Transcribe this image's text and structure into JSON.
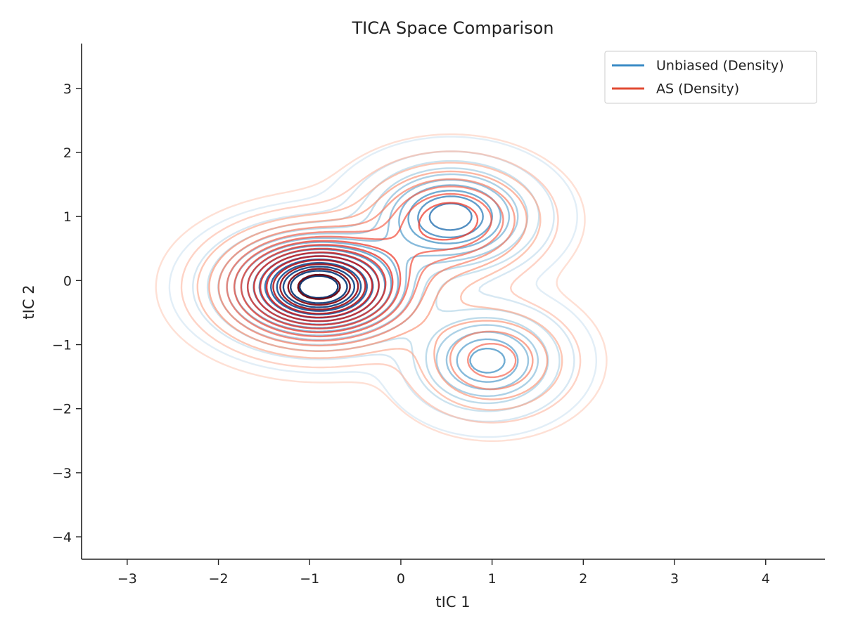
{
  "chart_data": {
    "type": "contour",
    "title": "TICA Space Comparison",
    "xlabel": "tIC 1",
    "ylabel": "tIC 2",
    "xlim": [
      -3.5,
      4.65
    ],
    "ylim": [
      -4.35,
      3.7
    ],
    "xticks": [
      -3,
      -2,
      -1,
      0,
      1,
      2,
      3,
      4
    ],
    "yticks": [
      -4,
      -3,
      -2,
      -1,
      0,
      1,
      2,
      3
    ],
    "xtick_labels": [
      "−3",
      "−2",
      "−1",
      "0",
      "1",
      "2",
      "3",
      "4"
    ],
    "ytick_labels": [
      "−4",
      "−3",
      "−2",
      "−1",
      "0",
      "1",
      "2",
      "3"
    ],
    "grid": false,
    "legend_position": "top-right",
    "series": [
      {
        "name": "Unbiased (Density)",
        "color": "#3a8bc6",
        "colormap": "Blues",
        "levels": 16,
        "density_modes": [
          {
            "x": -0.9,
            "y": -0.1,
            "weight": 1.0,
            "sx": 0.55,
            "sy": 0.45
          },
          {
            "x": 0.55,
            "y": 1.0,
            "weight": 0.55,
            "sx": 0.5,
            "sy": 0.45
          },
          {
            "x": 0.95,
            "y": -1.25,
            "weight": 0.4,
            "sx": 0.45,
            "sy": 0.45
          }
        ]
      },
      {
        "name": "AS (Density)",
        "color": "#e24a33",
        "colormap": "Reds",
        "levels": 16,
        "density_modes": [
          {
            "x": -0.9,
            "y": -0.1,
            "weight": 1.0,
            "sx": 0.6,
            "sy": 0.5
          },
          {
            "x": 0.55,
            "y": 0.95,
            "weight": 0.42,
            "sx": 0.55,
            "sy": 0.5
          },
          {
            "x": 1.0,
            "y": -1.25,
            "weight": 0.28,
            "sx": 0.5,
            "sy": 0.5
          }
        ]
      }
    ]
  }
}
